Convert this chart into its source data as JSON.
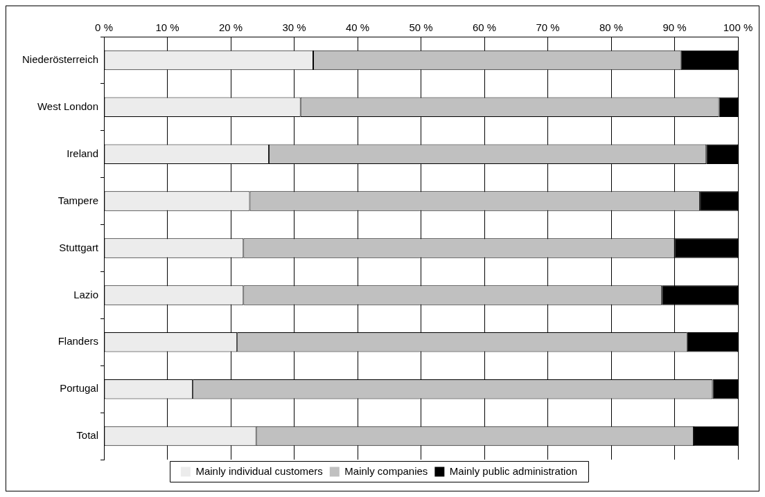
{
  "chart_data": {
    "type": "bar",
    "orientation": "horizontal",
    "stacked": true,
    "categories": [
      "Niederösterreich",
      "West London",
      "Ireland",
      "Tampere",
      "Stuttgart",
      "Lazio",
      "Flanders",
      "Portugal",
      "Total"
    ],
    "series": [
      {
        "name": "Mainly individual customers",
        "color": "#ececec",
        "values": [
          33,
          31,
          26,
          23,
          22,
          22,
          21,
          14,
          24
        ]
      },
      {
        "name": "Mainly companies",
        "color": "#c0c0c0",
        "values": [
          58,
          66,
          69,
          71,
          68,
          66,
          71,
          82,
          69
        ]
      },
      {
        "name": "Mainly public administration",
        "color": "#000000",
        "values": [
          9,
          3,
          5,
          6,
          10,
          12,
          8,
          4,
          7
        ]
      }
    ],
    "xlim": [
      0,
      100
    ],
    "xticks": [
      {
        "value": 0,
        "label": "0 %"
      },
      {
        "value": 10,
        "label": "10 %"
      },
      {
        "value": 20,
        "label": "20 %"
      },
      {
        "value": 30,
        "label": "30 %"
      },
      {
        "value": 40,
        "label": "40 %"
      },
      {
        "value": 50,
        "label": "50 %"
      },
      {
        "value": 60,
        "label": "60 %"
      },
      {
        "value": 70,
        "label": "70 %"
      },
      {
        "value": 80,
        "label": "80 %"
      },
      {
        "value": 90,
        "label": "90 %"
      },
      {
        "value": 100,
        "label": "100 %"
      }
    ],
    "grid": "x",
    "legend": "bottom"
  }
}
